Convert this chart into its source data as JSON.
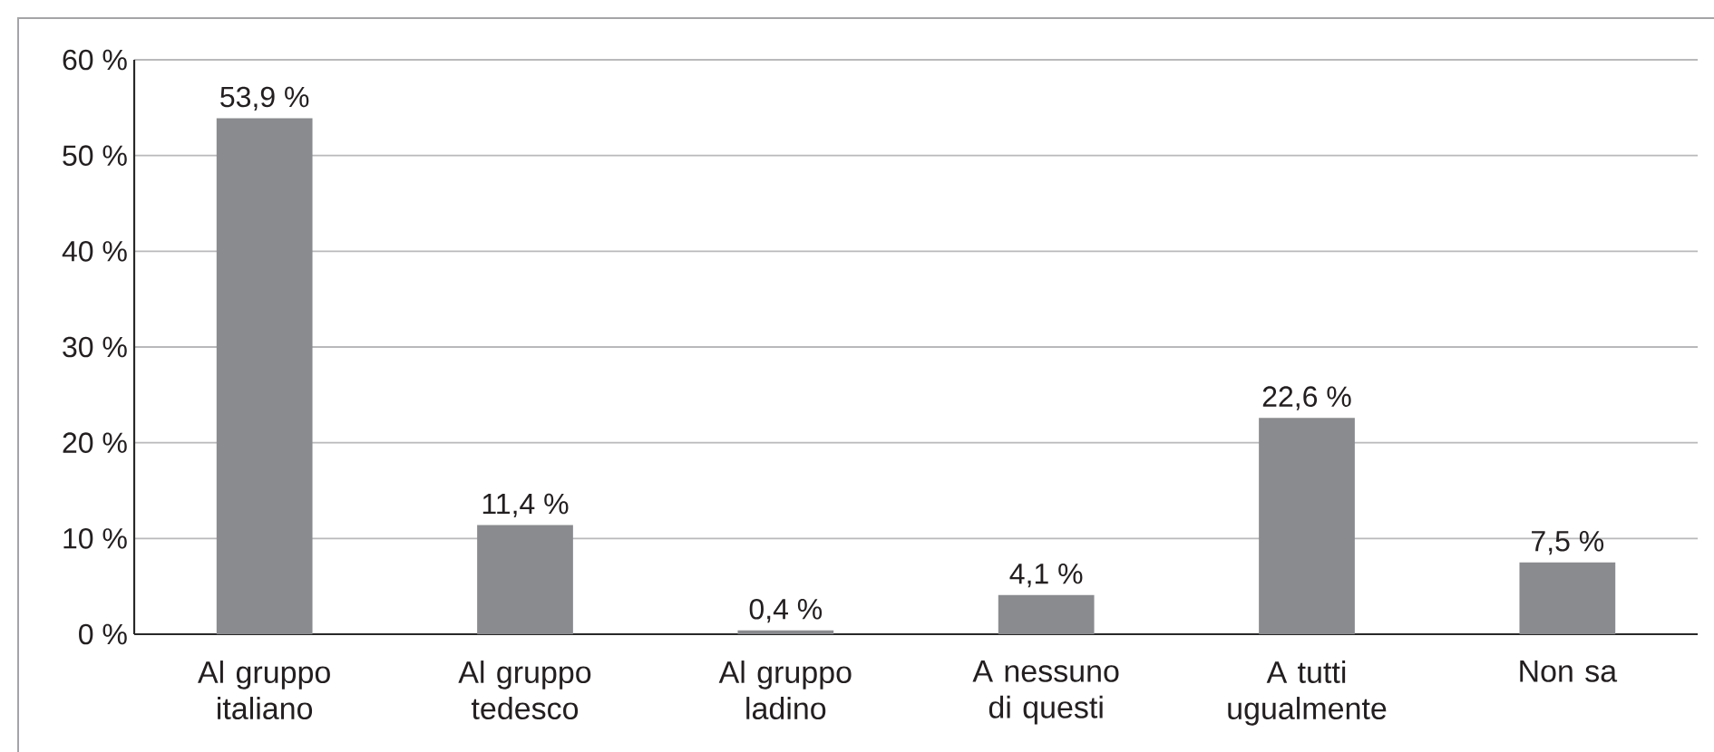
{
  "chart_data": {
    "type": "bar",
    "categories": [
      "Al gruppo italiano",
      "Al gruppo tedesco",
      "Al gruppo ladino",
      "A nessuno di questi",
      "A tutti ugualmente",
      "Non sa"
    ],
    "values": [
      53.9,
      11.4,
      0.4,
      4.1,
      22.6,
      7.5
    ],
    "value_labels": [
      "53,9 %",
      "11,4 %",
      "0,4 %",
      "4,1 %",
      "22,6 %",
      "7,5 %"
    ],
    "color": "#8a8b8e",
    "ylim": [
      0,
      60
    ],
    "yticks": [
      {
        "value": 0,
        "label": "0 %"
      },
      {
        "value": 10,
        "label": "10 %"
      },
      {
        "value": 20,
        "label": "20 %"
      },
      {
        "value": 30,
        "label": "30 %"
      },
      {
        "value": 40,
        "label": "40 %"
      },
      {
        "value": 50,
        "label": "50 %"
      },
      {
        "value": 60,
        "label": "60 %"
      }
    ],
    "grid": "y"
  }
}
